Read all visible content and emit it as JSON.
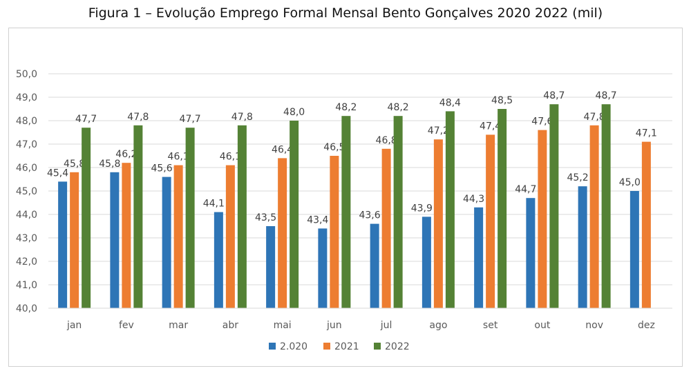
{
  "chart_data": {
    "type": "bar",
    "title": "Figura 1 – Evolução Emprego Formal Mensal Bento Gonçalves 2020 2022 (mil)",
    "categories": [
      "jan",
      "fev",
      "mar",
      "abr",
      "mai",
      "jun",
      "jul",
      "ago",
      "set",
      "out",
      "nov",
      "dez"
    ],
    "series": [
      {
        "name": "2.020",
        "color": "#2E75B6",
        "values": [
          45.4,
          45.8,
          45.6,
          44.1,
          43.5,
          43.4,
          43.6,
          43.9,
          44.3,
          44.7,
          45.2,
          45.0
        ],
        "labels": [
          "45,4",
          "45,8",
          "45,6",
          "44,1",
          "43,5",
          "43,4",
          "43,6",
          "43,9",
          "44,3",
          "44,7",
          "45,2",
          "45,0"
        ]
      },
      {
        "name": "2021",
        "color": "#ED7D31",
        "values": [
          45.8,
          46.2,
          46.1,
          46.1,
          46.4,
          46.5,
          46.8,
          47.2,
          47.4,
          47.6,
          47.8,
          47.1
        ],
        "labels": [
          "45,8",
          "46,2",
          "46,1",
          "46,1",
          "46,4",
          "46,5",
          "46,8",
          "47,2",
          "47,4",
          "47,6",
          "47,8",
          "47,1"
        ]
      },
      {
        "name": "2022",
        "color": "#548235",
        "values": [
          47.7,
          47.8,
          47.7,
          47.8,
          48.0,
          48.2,
          48.2,
          48.4,
          48.5,
          48.7,
          48.7,
          null
        ],
        "labels": [
          "47,7",
          "47,8",
          "47,7",
          "47,8",
          "48,0",
          "48,2",
          "48,2",
          "48,4",
          "48,5",
          "48,7",
          "48,7",
          null
        ]
      }
    ],
    "ylim": [
      40,
      50
    ],
    "yticks": [
      40,
      41,
      42,
      43,
      44,
      45,
      46,
      47,
      48,
      49,
      50
    ],
    "ytick_labels": [
      "40,0",
      "41,0",
      "42,0",
      "43,0",
      "44,0",
      "45,0",
      "46,0",
      "47,0",
      "48,0",
      "49,0",
      "50,0"
    ],
    "grid": true,
    "legend_position": "bottom"
  }
}
